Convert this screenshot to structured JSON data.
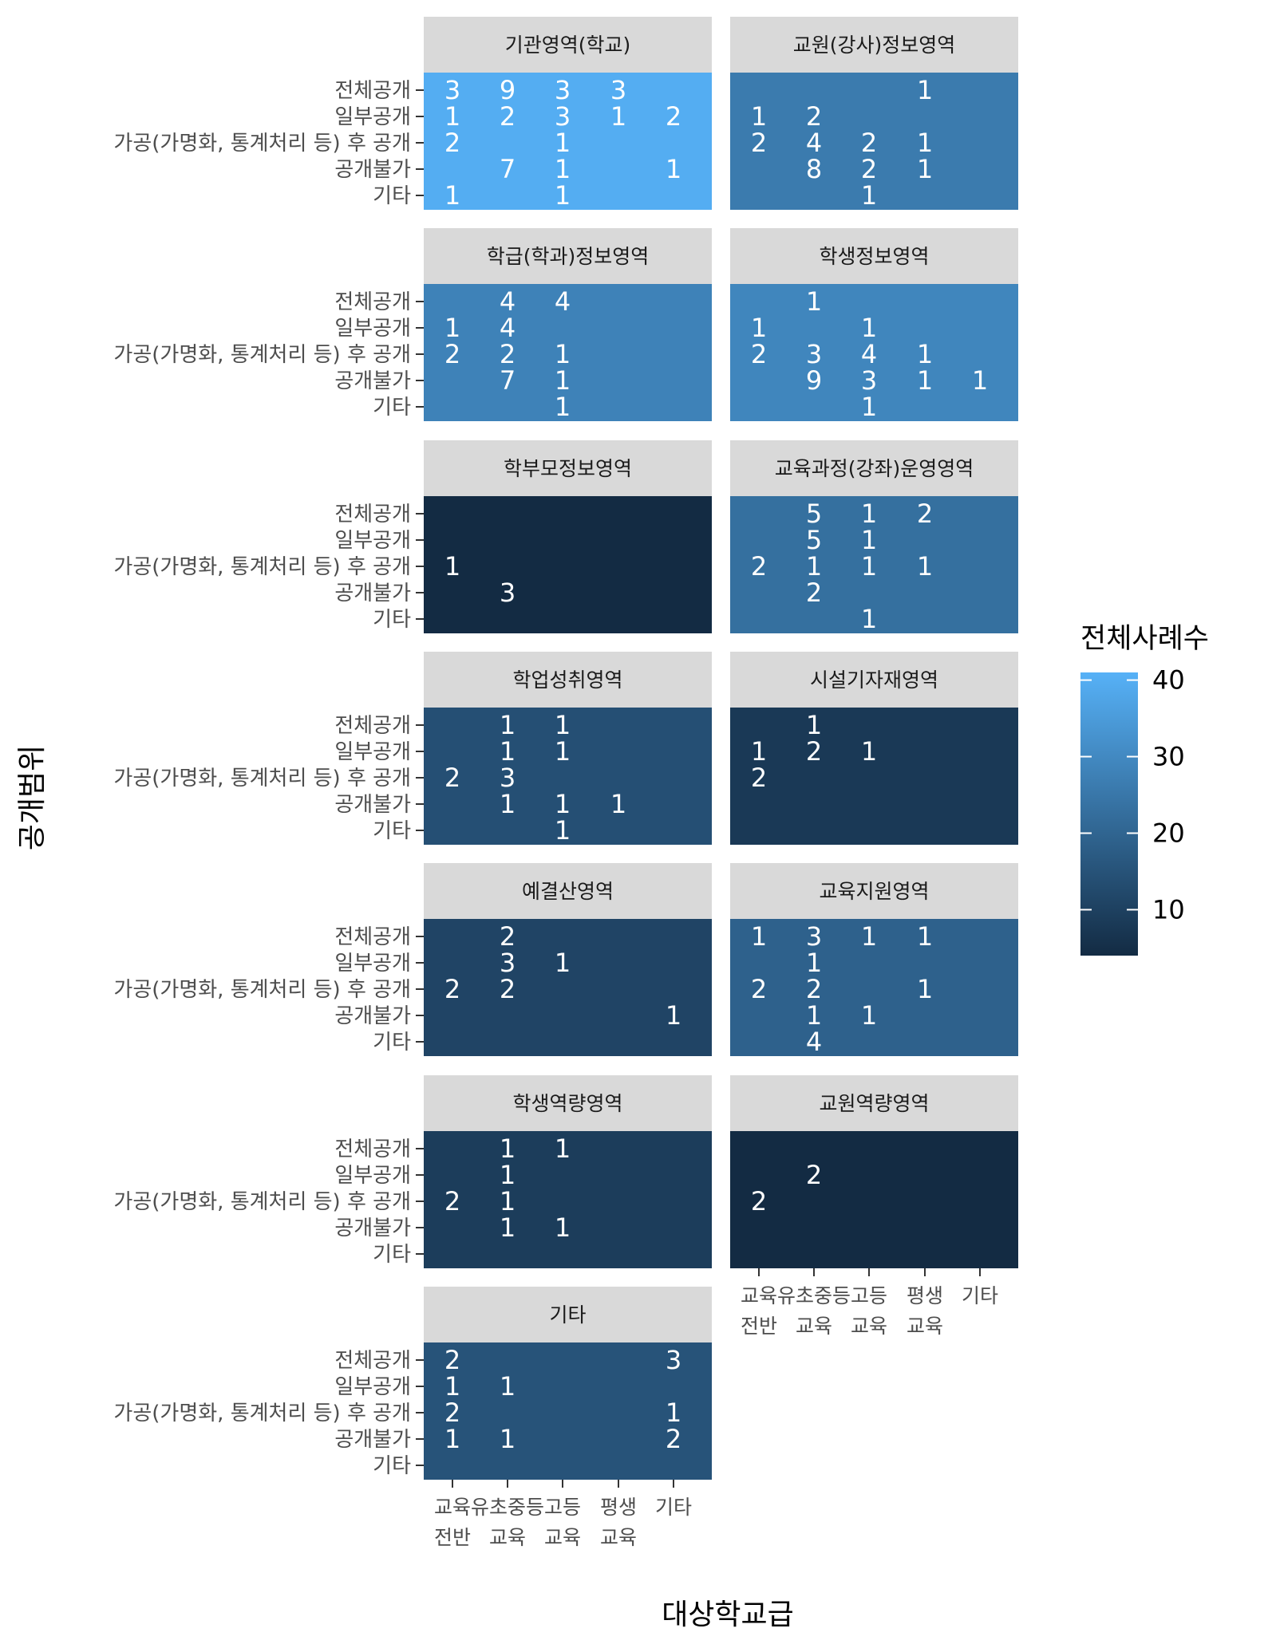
{
  "chart_data": {
    "type": "heatmap",
    "xlabel": "대상학교급",
    "ylabel": "공개범위",
    "x_categories": [
      "교육\n전반",
      "유초중등\n교육",
      "고등\n교육",
      "평생\n교육",
      "기타"
    ],
    "y_categories": [
      "전체공개",
      "일부공개",
      "가공(가명화, 통계처리 등) 후 공개",
      "공개불가",
      "기타"
    ],
    "legend": {
      "title": "전체사례수",
      "ticks": [
        "10",
        "20",
        "30",
        "40"
      ],
      "tick_values": [
        10,
        20,
        30,
        40
      ],
      "range": [
        4,
        41
      ],
      "color_low": "#132B43",
      "color_high": "#56B1F7",
      "placement": "right"
    },
    "panels": [
      {
        "title": "기관영역(학교)",
        "total": 40,
        "cells": [
          [
            3,
            9,
            3,
            3,
            null
          ],
          [
            1,
            2,
            3,
            1,
            2
          ],
          [
            2,
            null,
            1,
            null,
            null
          ],
          [
            null,
            7,
            1,
            null,
            1
          ],
          [
            1,
            null,
            1,
            null,
            null
          ]
        ]
      },
      {
        "title": "교원(강사)정보영역",
        "total": 26,
        "cells": [
          [
            null,
            null,
            null,
            1,
            null
          ],
          [
            1,
            2,
            null,
            null,
            null
          ],
          [
            2,
            4,
            2,
            1,
            null
          ],
          [
            null,
            8,
            2,
            1,
            null
          ],
          [
            null,
            null,
            1,
            null,
            null
          ]
        ]
      },
      {
        "title": "학급(학과)정보영역",
        "total": 28,
        "cells": [
          [
            null,
            4,
            4,
            null,
            null
          ],
          [
            1,
            4,
            null,
            null,
            null
          ],
          [
            2,
            2,
            1,
            null,
            null
          ],
          [
            null,
            7,
            1,
            null,
            null
          ],
          [
            null,
            null,
            1,
            null,
            null
          ]
        ]
      },
      {
        "title": "학생정보영역",
        "total": 29,
        "cells": [
          [
            null,
            1,
            null,
            null,
            null
          ],
          [
            1,
            null,
            1,
            null,
            null
          ],
          [
            2,
            3,
            4,
            1,
            null
          ],
          [
            null,
            9,
            3,
            1,
            1
          ],
          [
            null,
            null,
            1,
            null,
            null
          ]
        ]
      },
      {
        "title": "학부모정보영역",
        "total": 4,
        "cells": [
          [
            null,
            null,
            null,
            null,
            null
          ],
          [
            null,
            null,
            null,
            null,
            null
          ],
          [
            1,
            null,
            null,
            null,
            null
          ],
          [
            null,
            3,
            null,
            null,
            null
          ],
          [
            null,
            null,
            null,
            null,
            null
          ]
        ]
      },
      {
        "title": "교육과정(강좌)운영영역",
        "total": 23,
        "cells": [
          [
            null,
            5,
            1,
            2,
            null
          ],
          [
            null,
            5,
            1,
            null,
            null
          ],
          [
            2,
            1,
            1,
            1,
            null
          ],
          [
            null,
            2,
            null,
            null,
            null
          ],
          [
            null,
            null,
            1,
            null,
            null
          ]
        ]
      },
      {
        "title": "학업성취영역",
        "total": 14,
        "cells": [
          [
            null,
            1,
            1,
            null,
            null
          ],
          [
            null,
            1,
            1,
            null,
            null
          ],
          [
            2,
            3,
            null,
            null,
            null
          ],
          [
            null,
            1,
            1,
            1,
            null
          ],
          [
            null,
            null,
            1,
            null,
            null
          ]
        ]
      },
      {
        "title": "시설기자재영역",
        "total": 8,
        "cells": [
          [
            null,
            1,
            null,
            null,
            null
          ],
          [
            1,
            2,
            1,
            null,
            null
          ],
          [
            2,
            null,
            null,
            null,
            null
          ],
          [
            null,
            null,
            null,
            null,
            null
          ],
          [
            null,
            null,
            null,
            null,
            null
          ]
        ]
      },
      {
        "title": "예결산영역",
        "total": 11,
        "cells": [
          [
            null,
            2,
            null,
            null,
            null
          ],
          [
            null,
            3,
            1,
            null,
            null
          ],
          [
            2,
            2,
            null,
            null,
            null
          ],
          [
            null,
            null,
            null,
            null,
            1
          ],
          [
            null,
            null,
            null,
            null,
            null
          ]
        ]
      },
      {
        "title": "교육지원영역",
        "total": 19,
        "cells": [
          [
            1,
            3,
            1,
            1,
            null
          ],
          [
            null,
            1,
            null,
            null,
            null
          ],
          [
            2,
            2,
            null,
            1,
            null
          ],
          [
            null,
            1,
            1,
            null,
            null
          ],
          [
            null,
            4,
            null,
            null,
            null
          ]
        ]
      },
      {
        "title": "학생역량영역",
        "total": 9,
        "cells": [
          [
            null,
            1,
            1,
            null,
            null
          ],
          [
            null,
            1,
            null,
            null,
            null
          ],
          [
            2,
            1,
            null,
            null,
            null
          ],
          [
            null,
            1,
            1,
            null,
            null
          ],
          [
            null,
            null,
            null,
            null,
            null
          ]
        ]
      },
      {
        "title": "교원역량영역",
        "total": 4,
        "cells": [
          [
            null,
            null,
            null,
            null,
            null
          ],
          [
            null,
            2,
            null,
            null,
            null
          ],
          [
            2,
            null,
            null,
            null,
            null
          ],
          [
            null,
            null,
            null,
            null,
            null
          ],
          [
            null,
            null,
            null,
            null,
            null
          ]
        ]
      },
      {
        "title": "기타",
        "total": 15,
        "cells": [
          [
            2,
            null,
            null,
            null,
            3
          ],
          [
            1,
            1,
            null,
            null,
            null
          ],
          [
            2,
            null,
            null,
            null,
            1
          ],
          [
            1,
            1,
            null,
            null,
            2
          ],
          [
            null,
            null,
            null,
            null,
            null
          ]
        ]
      }
    ]
  }
}
